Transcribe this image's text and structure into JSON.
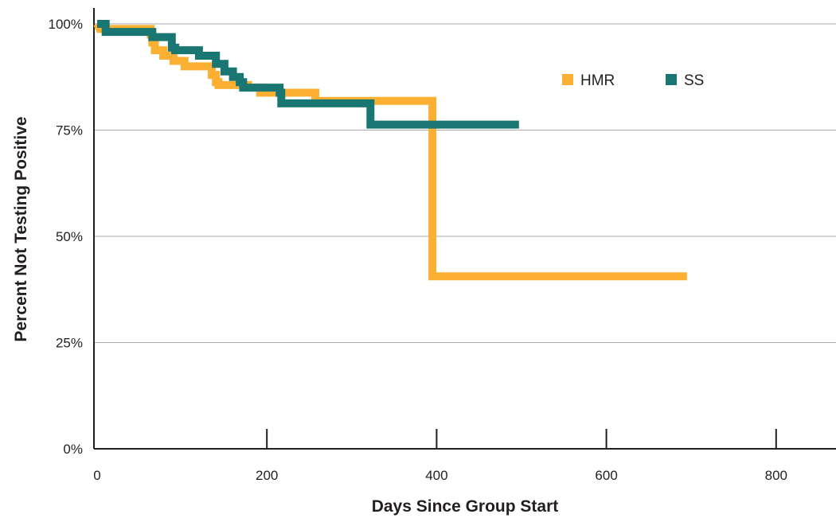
{
  "chart_data": {
    "type": "line",
    "step": true,
    "xlabel": "Days Since Group Start",
    "ylabel": "Percent Not Testing Positive",
    "xlim": [
      0,
      880
    ],
    "ylim": [
      0,
      100
    ],
    "x_ticks": [
      0,
      200,
      400,
      600,
      800
    ],
    "x_tick_labels": [
      "0",
      "200",
      "400",
      "600",
      "800"
    ],
    "y_ticks": [
      0,
      25,
      50,
      75,
      100
    ],
    "y_tick_labels": [
      "0%",
      "25%",
      "50%",
      "75%",
      "100%"
    ],
    "grid": "horizontal",
    "legend": "top-right",
    "series": [
      {
        "name": "HMR",
        "color": "#fbb034",
        "points": [
          [
            0,
            100
          ],
          [
            3,
            98.8
          ],
          [
            63,
            98.8
          ],
          [
            63,
            97.5
          ],
          [
            65,
            97.5
          ],
          [
            65,
            95.6
          ],
          [
            68,
            95.6
          ],
          [
            68,
            93.8
          ],
          [
            78,
            93.8
          ],
          [
            78,
            92.5
          ],
          [
            90,
            92.5
          ],
          [
            90,
            91.3
          ],
          [
            103,
            91.3
          ],
          [
            103,
            90
          ],
          [
            135,
            90
          ],
          [
            135,
            88
          ],
          [
            140,
            88
          ],
          [
            140,
            86.3
          ],
          [
            143,
            86.3
          ],
          [
            143,
            85.6
          ],
          [
            178,
            85.6
          ],
          [
            178,
            85
          ],
          [
            192,
            85
          ],
          [
            192,
            83.8
          ],
          [
            257,
            83.8
          ],
          [
            257,
            81.9
          ],
          [
            395,
            81.9
          ],
          [
            395,
            40.6
          ],
          [
            695,
            40.6
          ]
        ]
      },
      {
        "name": "SS",
        "color": "#1a7672",
        "points": [
          [
            0,
            100
          ],
          [
            10,
            100
          ],
          [
            10,
            98.1
          ],
          [
            65,
            98.1
          ],
          [
            65,
            96.9
          ],
          [
            88,
            96.9
          ],
          [
            88,
            94.4
          ],
          [
            92,
            94.4
          ],
          [
            92,
            93.8
          ],
          [
            120,
            93.8
          ],
          [
            120,
            92.5
          ],
          [
            140,
            92.5
          ],
          [
            140,
            90.6
          ],
          [
            150,
            90.6
          ],
          [
            150,
            88.8
          ],
          [
            160,
            88.8
          ],
          [
            160,
            87.5
          ],
          [
            168,
            87.5
          ],
          [
            168,
            86.3
          ],
          [
            172,
            86.3
          ],
          [
            172,
            85
          ],
          [
            215,
            85
          ],
          [
            215,
            83.8
          ],
          [
            217,
            83.8
          ],
          [
            217,
            81.3
          ],
          [
            322,
            81.3
          ],
          [
            322,
            76.3
          ],
          [
            497,
            76.3
          ]
        ]
      }
    ]
  }
}
